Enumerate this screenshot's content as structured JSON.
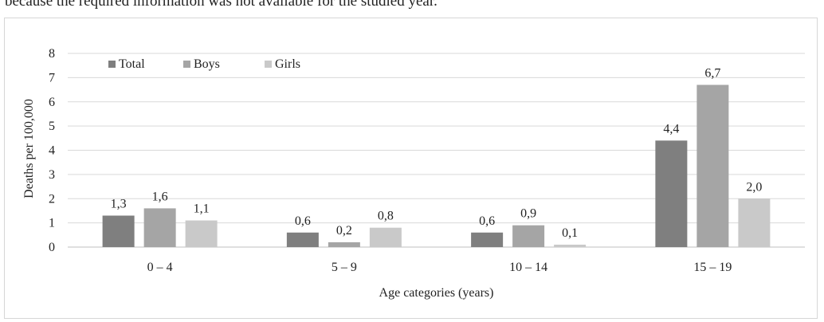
{
  "caption": "because the required information was not available for the studied year.",
  "chart_data": {
    "type": "bar",
    "categories": [
      "0 – 4",
      "5 – 9",
      "10 – 14",
      "15 – 19"
    ],
    "series": [
      {
        "name": "Total",
        "values": [
          1.3,
          0.6,
          0.6,
          4.4
        ],
        "labels": [
          "1,3",
          "0,6",
          "0,6",
          "4,4"
        ],
        "color": "#7f7f7f"
      },
      {
        "name": "Boys",
        "values": [
          1.6,
          0.2,
          0.9,
          6.7
        ],
        "labels": [
          "1,6",
          "0,2",
          "0,9",
          "6,7"
        ],
        "color": "#a5a5a5"
      },
      {
        "name": "Girls",
        "values": [
          1.1,
          0.8,
          0.1,
          2.0
        ],
        "labels": [
          "1,1",
          "0,8",
          "0,1",
          "2,0"
        ],
        "color": "#c9c9c9"
      }
    ],
    "xlabel": "Age categories (years)",
    "ylabel": "Deaths per 100,000",
    "ylim": [
      0,
      8
    ],
    "yticks": [
      "0",
      "1",
      "2",
      "3",
      "4",
      "5",
      "6",
      "7",
      "8"
    ],
    "grid": true,
    "legend_position": "top-left"
  }
}
